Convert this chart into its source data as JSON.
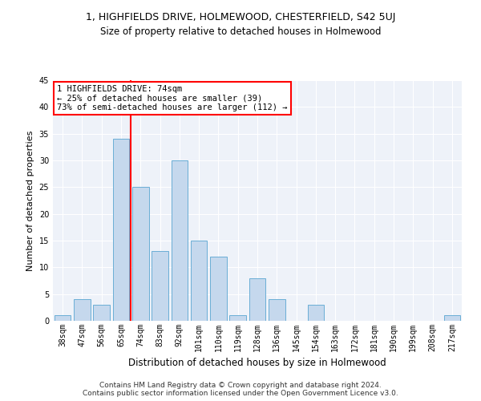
{
  "title1": "1, HIGHFIELDS DRIVE, HOLMEWOOD, CHESTERFIELD, S42 5UJ",
  "title2": "Size of property relative to detached houses in Holmewood",
  "xlabel": "Distribution of detached houses by size in Holmewood",
  "ylabel": "Number of detached properties",
  "footer": "Contains HM Land Registry data © Crown copyright and database right 2024.\nContains public sector information licensed under the Open Government Licence v3.0.",
  "categories": [
    "38sqm",
    "47sqm",
    "56sqm",
    "65sqm",
    "74sqm",
    "83sqm",
    "92sqm",
    "101sqm",
    "110sqm",
    "119sqm",
    "128sqm",
    "136sqm",
    "145sqm",
    "154sqm",
    "163sqm",
    "172sqm",
    "181sqm",
    "190sqm",
    "199sqm",
    "208sqm",
    "217sqm"
  ],
  "values": [
    1,
    4,
    3,
    34,
    25,
    13,
    30,
    15,
    12,
    1,
    8,
    4,
    0,
    3,
    0,
    0,
    0,
    0,
    0,
    0,
    1
  ],
  "bar_color": "#c5d8ed",
  "bar_edge_color": "#6aaed6",
  "background_color": "#eef2f9",
  "grid_color": "#ffffff",
  "red_line_x": 3.5,
  "annotation_title": "1 HIGHFIELDS DRIVE: 74sqm",
  "annotation_line1": "← 25% of detached houses are smaller (39)",
  "annotation_line2": "73% of semi-detached houses are larger (112) →",
  "ylim": [
    0,
    45
  ],
  "yticks": [
    0,
    5,
    10,
    15,
    20,
    25,
    30,
    35,
    40,
    45
  ],
  "title1_fontsize": 9,
  "title2_fontsize": 8.5,
  "ylabel_fontsize": 8,
  "xlabel_fontsize": 8.5,
  "tick_fontsize": 7,
  "annotation_fontsize": 7.5,
  "footer_fontsize": 6.5
}
